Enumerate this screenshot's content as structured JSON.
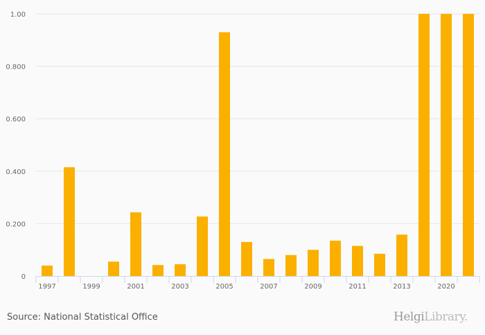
{
  "chart_data": {
    "type": "bar",
    "categories": [
      "1997",
      "1998",
      "1999",
      "2000",
      "2001",
      "2002",
      "2003",
      "2004",
      "2005",
      "2006",
      "2007",
      "2008",
      "2009",
      "2010",
      "2011",
      "2012",
      "2013",
      "2019",
      "2020",
      "2021"
    ],
    "tick_labels": [
      "1997",
      "",
      "1999",
      "",
      "2001",
      "",
      "2003",
      "",
      "2005",
      "",
      "2007",
      "",
      "2009",
      "",
      "2011",
      "",
      "2013",
      "",
      "2020",
      ""
    ],
    "values": [
      0.04,
      0.415,
      0,
      0.055,
      0.243,
      0.042,
      0.045,
      0.227,
      0.93,
      0.13,
      0.065,
      0.08,
      0.1,
      0.135,
      0.115,
      0.085,
      0.158,
      1.0,
      1.0,
      1.0
    ],
    "ylim": [
      0,
      1
    ],
    "yticks": [
      0,
      0.2,
      0.4,
      0.6,
      0.8,
      1.0
    ],
    "ytick_labels": [
      "0",
      "0.200",
      "0.400",
      "0.600",
      "0.800",
      "1.00"
    ],
    "title": "",
    "xlabel": "",
    "ylabel": "",
    "grid": true,
    "bar_color": "#fbb000"
  },
  "footer": {
    "source": "Source: National Statistical Office",
    "logo_main": "Helgi",
    "logo_sub": "Library."
  }
}
